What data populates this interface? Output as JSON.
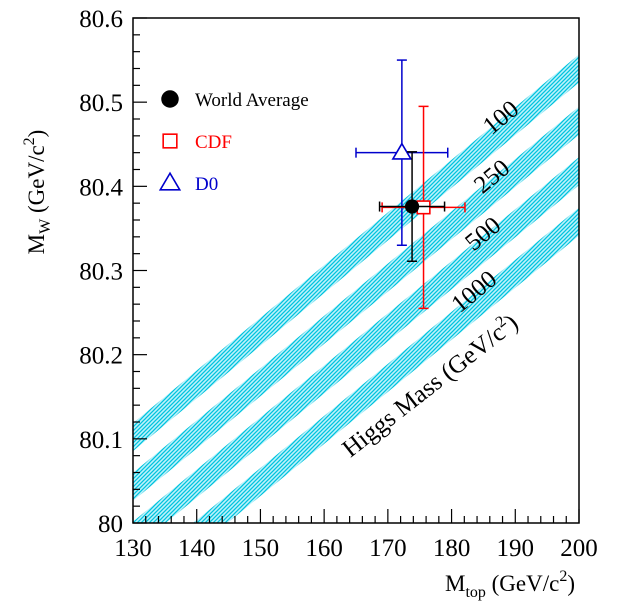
{
  "chart_data": {
    "type": "scatter",
    "xlim": [
      130,
      200
    ],
    "ylim": [
      80.0,
      80.6
    ],
    "x_ticks": [
      130,
      140,
      150,
      160,
      170,
      180,
      190,
      200
    ],
    "y_ticks": [
      80,
      80.1,
      80.2,
      80.3,
      80.4,
      80.5,
      80.6
    ],
    "x_tick_labels": [
      "130",
      "140",
      "150",
      "160",
      "170",
      "180",
      "190",
      "200"
    ],
    "y_tick_labels": [
      "80",
      "80.1",
      "80.2",
      "80.3",
      "80.4",
      "80.5",
      "80.6"
    ],
    "xlabel": {
      "main": "M",
      "sub": "top",
      "rest": " (GeV/c",
      "sup": "2",
      "end": ")"
    },
    "ylabel": {
      "main": "M",
      "sub": "W",
      "rest": " (GeV/c",
      "sup": "2",
      "end": ")"
    },
    "grid": false,
    "legend_position": "top-left",
    "points": [
      {
        "name": "World Average",
        "x": 173.8,
        "y": 80.376,
        "xerr": [
          5.1,
          5.1
        ],
        "yerr": [
          0.065,
          0.065
        ],
        "color": "#000000",
        "marker": "filled-circle"
      },
      {
        "name": "CDF",
        "x": 175.6,
        "y": 80.375,
        "xerr": [
          6.5,
          6.5
        ],
        "yerr": [
          0.12,
          0.12
        ],
        "color": "#ff0000",
        "marker": "open-square"
      },
      {
        "name": "D0",
        "x": 172.2,
        "y": 80.44,
        "xerr": [
          7.2,
          7.2
        ],
        "yerr": [
          0.11,
          0.11
        ],
        "color": "#0000cc",
        "marker": "open-triangle"
      }
    ],
    "bands": [
      {
        "label": "100",
        "x_start": 130,
        "y_start": 80.102,
        "x_end": 200,
        "y_end": 80.54,
        "color": "#00c8e0"
      },
      {
        "label": "250",
        "x_start": 130,
        "y_start": 80.043,
        "x_end": 200,
        "y_end": 80.478,
        "color": "#00c8e0"
      },
      {
        "label": "500",
        "x_start": 130,
        "y_start": 79.985,
        "x_end": 200,
        "y_end": 80.418,
        "color": "#00c8e0"
      },
      {
        "label": "1000",
        "x_start": 130,
        "y_start": 79.925,
        "x_end": 200,
        "y_end": 80.358,
        "color": "#00c8e0"
      }
    ],
    "band_title": {
      "text": "Higgs Mass (GeV/c",
      "sup": "2",
      "end": ")"
    }
  }
}
